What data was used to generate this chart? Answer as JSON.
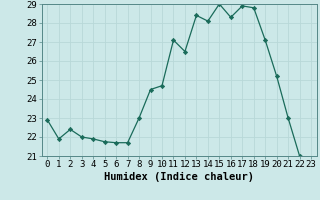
{
  "x": [
    0,
    1,
    2,
    3,
    4,
    5,
    6,
    7,
    8,
    9,
    10,
    11,
    12,
    13,
    14,
    15,
    16,
    17,
    18,
    19,
    20,
    21,
    22,
    23
  ],
  "y": [
    22.9,
    21.9,
    22.4,
    22.0,
    21.9,
    21.75,
    21.7,
    21.7,
    23.0,
    24.5,
    24.7,
    27.1,
    26.5,
    28.4,
    28.1,
    29.0,
    28.3,
    28.9,
    28.8,
    27.1,
    25.2,
    23.0,
    21.0,
    20.8
  ],
  "line_color": "#1a6b5a",
  "marker_color": "#1a6b5a",
  "bg_color": "#cce8e8",
  "grid_color": "#b8d8d8",
  "xlabel": "Humidex (Indice chaleur)",
  "ylim_min": 21,
  "ylim_max": 29,
  "xlim_min": -0.5,
  "xlim_max": 23.5,
  "yticks": [
    21,
    22,
    23,
    24,
    25,
    26,
    27,
    28,
    29
  ],
  "xticks": [
    0,
    1,
    2,
    3,
    4,
    5,
    6,
    7,
    8,
    9,
    10,
    11,
    12,
    13,
    14,
    15,
    16,
    17,
    18,
    19,
    20,
    21,
    22,
    23
  ],
  "tick_fontsize": 6.5,
  "xlabel_fontsize": 7.5,
  "linewidth": 0.9,
  "markersize": 2.2
}
